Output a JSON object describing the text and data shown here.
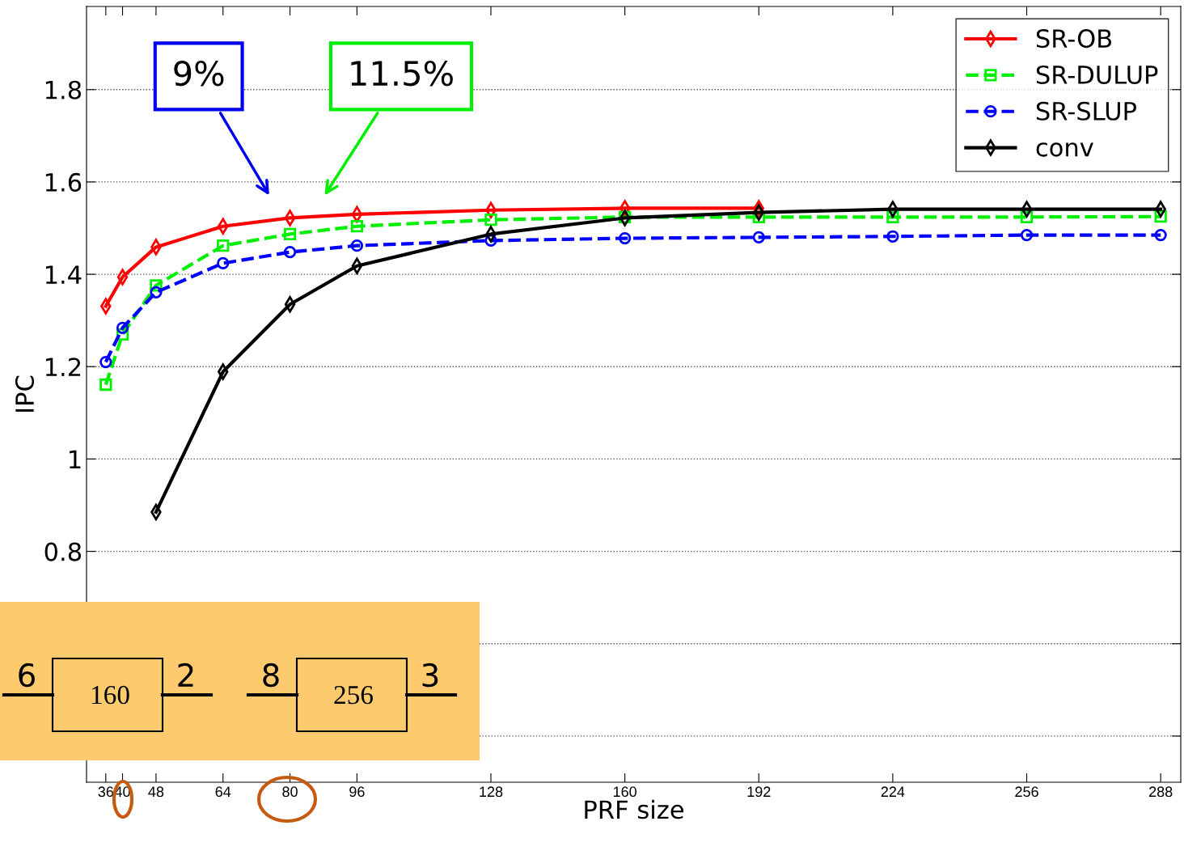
{
  "chart_data": {
    "type": "line",
    "xlabel": "PRF size",
    "ylabel": "IPC",
    "x": [
      36,
      40,
      48,
      64,
      80,
      96,
      128,
      160,
      192,
      224,
      256,
      288
    ],
    "xlim": [
      31.4,
      292.8
    ],
    "xticks": [
      36,
      40,
      48,
      64,
      80,
      96,
      128,
      160,
      192,
      224,
      256,
      288
    ],
    "ylim": [
      0.3,
      1.98
    ],
    "yticks": [
      {
        "value": 0.4,
        "label": null
      },
      {
        "value": 0.6,
        "label": null
      },
      0.8,
      1,
      1.2,
      1.4,
      1.6,
      1.8
    ],
    "grid": "y",
    "legend": "top right",
    "series": [
      {
        "name": "SR-OB",
        "color": "#ff0000",
        "marker": "diamond",
        "line_style": "solid",
        "values": [
          1.331,
          1.394,
          1.459,
          1.504,
          1.522,
          1.53,
          1.539,
          1.543,
          1.543,
          null,
          null,
          null
        ]
      },
      {
        "name": "SR-DULUP",
        "color": "#00ee00",
        "marker": "square",
        "line_style": "dashed",
        "values": [
          1.161,
          1.27,
          1.376,
          1.462,
          1.487,
          1.504,
          1.518,
          1.524,
          1.524,
          1.524,
          1.524,
          1.525
        ]
      },
      {
        "name": "SR-SLUP",
        "color": "#0000ff",
        "marker": "circle",
        "line_style": "dashed",
        "values": [
          1.21,
          1.284,
          1.361,
          1.424,
          1.448,
          1.462,
          1.473,
          1.478,
          1.48,
          1.482,
          1.485,
          1.485
        ]
      },
      {
        "name": "conv",
        "color": "#000000",
        "marker": "diamond",
        "line_style": "solid",
        "values": [
          null,
          null,
          0.885,
          1.189,
          1.335,
          1.418,
          1.487,
          1.522,
          1.534,
          1.541,
          1.541,
          1.541
        ]
      }
    ],
    "annotations": [
      "9%",
      "11.5%",
      "6",
      "160",
      "2",
      "8",
      "256",
      "3"
    ]
  }
}
